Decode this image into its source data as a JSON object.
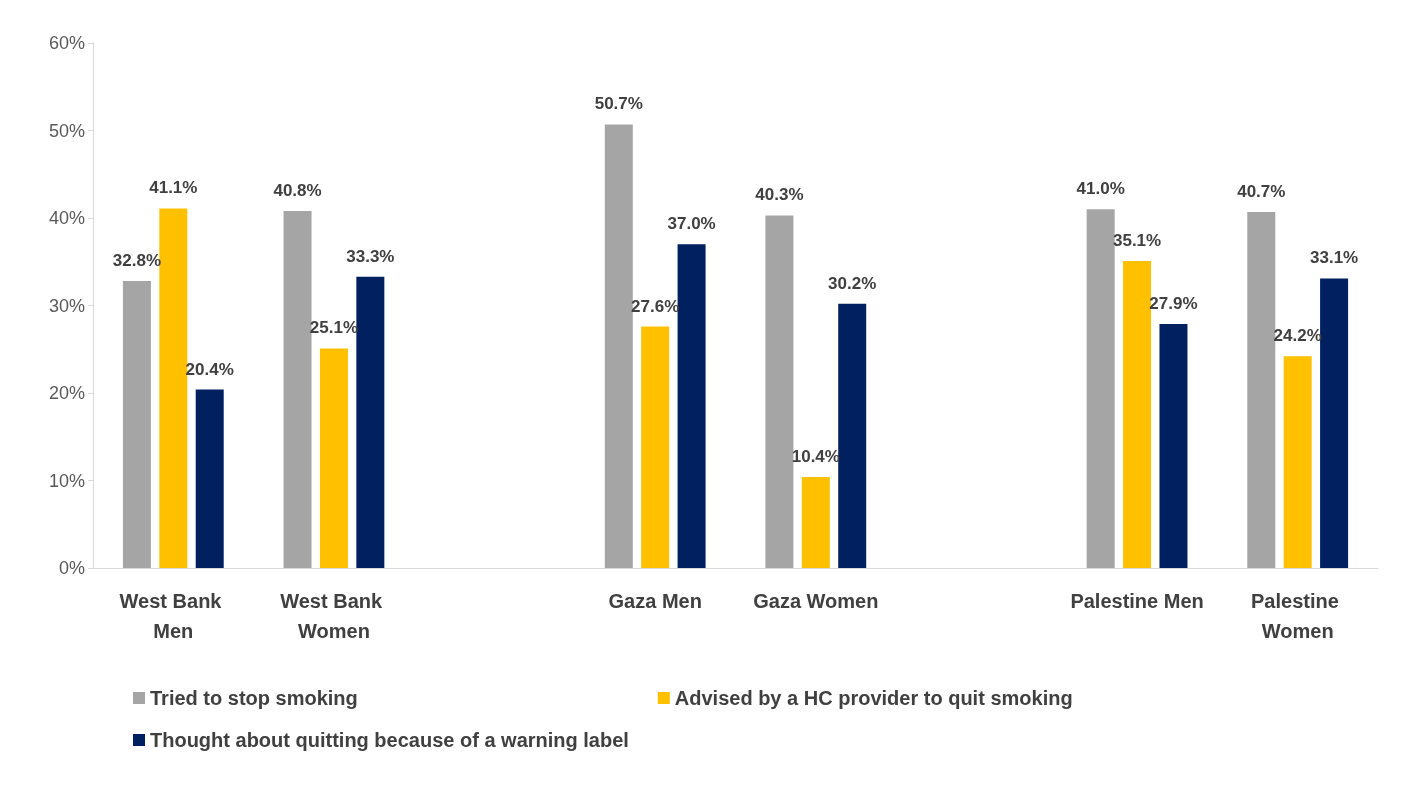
{
  "chart_data": {
    "type": "bar",
    "categories": [
      "West Bank Men",
      "West Bank Women",
      null,
      "Gaza Men",
      "Gaza Women",
      null,
      "Palestine Men",
      "Palestine Women"
    ],
    "series": [
      {
        "name": "Tried to stop smoking",
        "color": "#a5a5a5",
        "values": [
          32.8,
          40.8,
          null,
          50.7,
          40.3,
          null,
          41.0,
          40.7
        ],
        "value_labels": [
          "32.8%",
          "40.8%",
          null,
          "50.7%",
          "40.3%",
          null,
          "41.0%",
          "40.7%"
        ]
      },
      {
        "name": "Advised by a HC provider to quit smoking",
        "color": "#ffc000",
        "values": [
          41.1,
          25.1,
          null,
          27.6,
          10.4,
          null,
          35.1,
          24.2
        ],
        "value_labels": [
          "41.1%",
          "25.1%",
          null,
          "27.6%",
          "10.4%",
          null,
          "35.1%",
          "24.2%"
        ]
      },
      {
        "name": "Thought about quitting because of a warning label",
        "color": "#002060",
        "values": [
          20.4,
          33.3,
          null,
          37.0,
          30.2,
          null,
          27.9,
          33.1
        ],
        "value_labels": [
          "20.4%",
          "33.3%",
          null,
          "37.0%",
          "30.2%",
          null,
          "27.9%",
          "33.1%"
        ]
      }
    ],
    "ylim": [
      0,
      60
    ],
    "yticks": [
      {
        "value": 0,
        "label": "0%"
      },
      {
        "value": 10,
        "label": "10%"
      },
      {
        "value": 20,
        "label": "20%"
      },
      {
        "value": 30,
        "label": "30%"
      },
      {
        "value": 40,
        "label": "40%"
      },
      {
        "value": 50,
        "label": "50%"
      },
      {
        "value": 60,
        "label": "60%"
      }
    ],
    "grid": false,
    "legend": "bottom"
  }
}
